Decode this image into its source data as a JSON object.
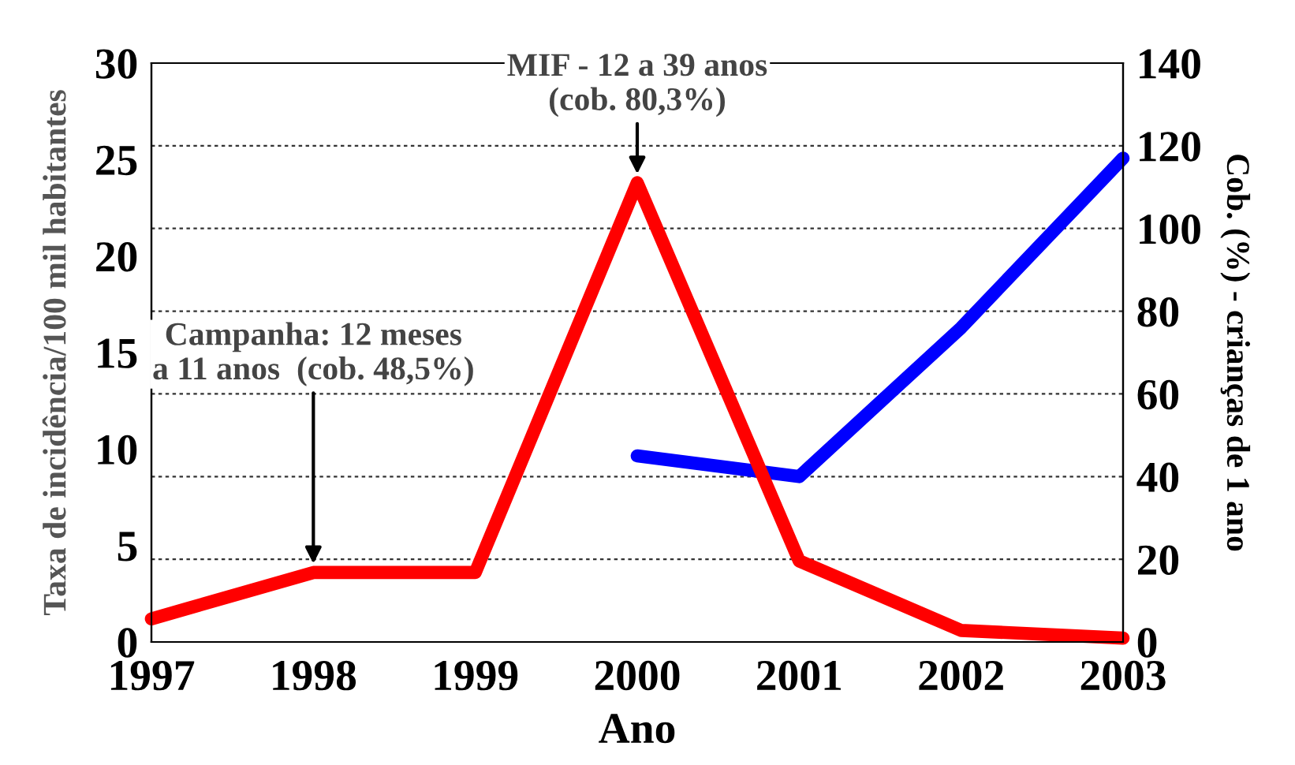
{
  "chart_data": {
    "type": "line",
    "xlabel": "Ano",
    "ylabel": "Taxa de incidência/100 mil habitantes",
    "y2label": "Cob. (%) - crianças de 1 ano",
    "x": [
      1997,
      1998,
      1999,
      2000,
      2001,
      2002,
      2003
    ],
    "series": [
      {
        "color": "#ff0000",
        "values": [
          1.2,
          3.6,
          3.6,
          23.8,
          4.2,
          0.6,
          0.2
        ]
      },
      {
        "color": "#0000ff",
        "axis": "y2",
        "values": [
          null,
          null,
          null,
          45,
          40,
          76,
          117
        ]
      }
    ],
    "xlim": [
      1997,
      2003
    ],
    "xticks": [
      1997,
      1998,
      1999,
      2000,
      2001,
      2002,
      2003
    ],
    "ylim": [
      0,
      30
    ],
    "yticks": [
      0,
      5,
      10,
      15,
      20,
      25,
      30
    ],
    "y2lim": [
      0,
      140
    ],
    "y2ticks": [
      0,
      20,
      40,
      60,
      80,
      100,
      120,
      140
    ],
    "grid": "y2",
    "legend": false,
    "marker": "none",
    "line_style": "solid",
    "annotations": [
      {
        "text": "Campanha: 12 meses\na 11 anos  (cob. 48,5%)",
        "x": 1998,
        "y": 3.6
      },
      {
        "text": "MIF - 12 a 39 anos\n(cob. 80,3%)",
        "x": 2000,
        "y": 23.8
      }
    ]
  }
}
